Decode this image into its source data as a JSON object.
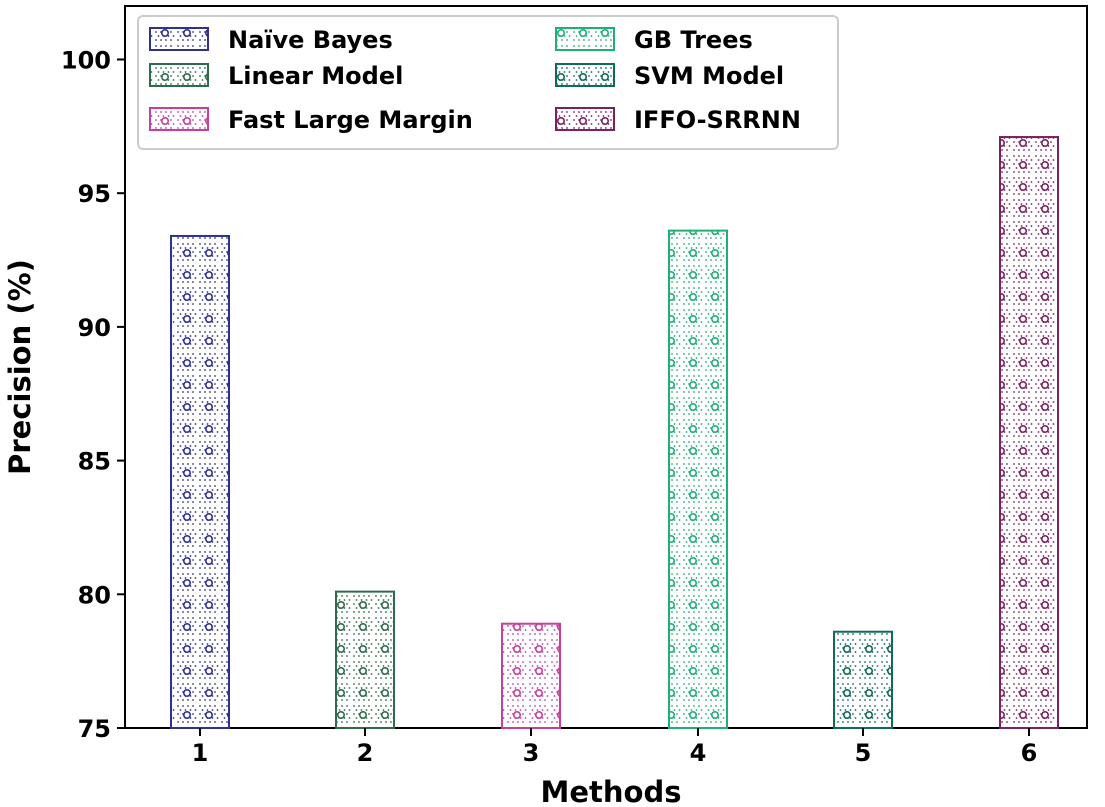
{
  "chart_data": {
    "type": "bar",
    "title": "",
    "xlabel": "Methods",
    "ylabel": "Precision (%)",
    "categories": [
      "1",
      "2",
      "3",
      "4",
      "5",
      "6"
    ],
    "values": [
      93.4,
      80.1,
      78.9,
      93.6,
      78.6,
      97.1
    ],
    "ylim": [
      75,
      102
    ],
    "yticks": [
      "75",
      "80",
      "85",
      "90",
      "95",
      "100"
    ],
    "grid": false,
    "legend_position": "top-left",
    "series": [
      {
        "name": "Naïve Bayes",
        "category": "1",
        "value": 93.4,
        "color": "#2e3192"
      },
      {
        "name": "Linear Model",
        "category": "2",
        "value": 80.1,
        "color": "#2e6b4c"
      },
      {
        "name": "Fast Large Margin",
        "category": "3",
        "value": 78.9,
        "color": "#c53f9b"
      },
      {
        "name": "GB Trees",
        "category": "4",
        "value": 93.6,
        "color": "#1fae74"
      },
      {
        "name": "SVM Model",
        "category": "5",
        "value": 78.6,
        "color": "#0e6a5a"
      },
      {
        "name": "IFFO-SRRNN",
        "category": "6",
        "value": 97.1,
        "color": "#7b2160"
      }
    ]
  }
}
